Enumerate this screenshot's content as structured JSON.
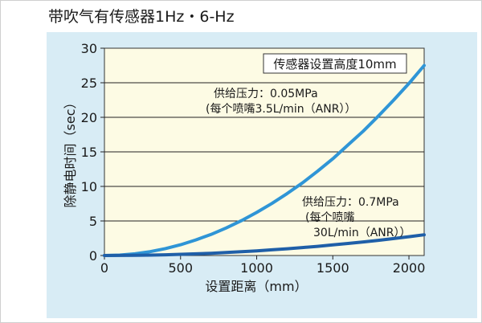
{
  "chart_data": {
    "type": "line",
    "title": "带吹气有传感器1Hz・6-Hz",
    "xlabel": "设置距离（mm）",
    "ylabel": "除静电时间（sec）",
    "xlim": [
      0,
      2100
    ],
    "ylim": [
      0,
      30
    ],
    "xticks": [
      0,
      500,
      1000,
      1500,
      2000
    ],
    "yticks": [
      0,
      5,
      10,
      15,
      20,
      25,
      30
    ],
    "grid": "horizontal",
    "legend_box": "传感器设置高度10mm",
    "series": [
      {
        "color": "#2f95d6",
        "annotation": [
          "供给压力：0.05MPa",
          "(每个喷嘴3.5L/min（ANR））"
        ],
        "x": [
          0,
          100,
          200,
          300,
          400,
          500,
          600,
          700,
          800,
          900,
          1000,
          1100,
          1200,
          1300,
          1400,
          1500,
          1600,
          1700,
          1800,
          1900,
          2000,
          2100
        ],
        "y": [
          0,
          0.06,
          0.25,
          0.56,
          1.0,
          1.56,
          2.25,
          3.05,
          3.99,
          5.05,
          6.23,
          7.54,
          8.97,
          10.5,
          12.2,
          14.0,
          16.0,
          18.0,
          20.2,
          22.5,
          24.9,
          27.5
        ]
      },
      {
        "color": "#1f5fa8",
        "annotation": [
          "供给压力：0.7MPa",
          "(每个喷嘴",
          "30L/min（ANR））"
        ],
        "x": [
          0,
          100,
          200,
          300,
          400,
          500,
          600,
          700,
          800,
          900,
          1000,
          1100,
          1200,
          1300,
          1400,
          1500,
          1600,
          1700,
          1800,
          1900,
          2000,
          2100
        ],
        "y": [
          0,
          0.01,
          0.03,
          0.06,
          0.11,
          0.17,
          0.24,
          0.33,
          0.44,
          0.55,
          0.68,
          0.82,
          0.98,
          1.15,
          1.33,
          1.53,
          1.74,
          1.96,
          2.2,
          2.45,
          2.72,
          3.0
        ]
      }
    ]
  }
}
